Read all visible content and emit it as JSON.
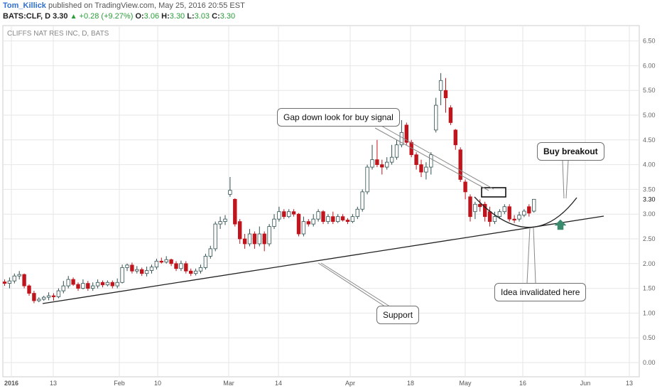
{
  "header": {
    "author": "Tom_Killick",
    "published": "published on TradingView.com, May 25, 2016 20:55 EST",
    "symbol": "BATS:CLF, D",
    "last": "3.30",
    "change": "+0.28 (+9.27%)",
    "o_label": "O:",
    "o": "3.06",
    "h_label": "H:",
    "h": "3.30",
    "l_label": "L:",
    "l": "3.03",
    "c_label": "C:",
    "c": "3.30"
  },
  "chart_data": {
    "type": "candlestick",
    "title": "CLIFFS NAT RES INC, D, BATS",
    "ylim": [
      -0.2,
      6.75
    ],
    "y_ticks": [
      "0.00",
      "0.50",
      "1.00",
      "1.50",
      "2.00",
      "2.50",
      "3.00",
      "3.50",
      "4.00",
      "4.50",
      "5.00",
      "5.50",
      "6.00",
      "6.50"
    ],
    "current_price_label": "3.30",
    "x_tick_labels": [
      "2016",
      "13",
      "Feb",
      "10",
      "Mar",
      "14",
      "Apr",
      "18",
      "May",
      "16",
      "Jun",
      "13"
    ],
    "candles": [
      {
        "o": 1.63,
        "c": 1.6,
        "h": 1.68,
        "l": 1.55
      },
      {
        "o": 1.6,
        "c": 1.65,
        "h": 1.72,
        "l": 1.5
      },
      {
        "o": 1.65,
        "c": 1.75,
        "h": 1.8,
        "l": 1.6
      },
      {
        "o": 1.75,
        "c": 1.78,
        "h": 1.85,
        "l": 1.68
      },
      {
        "o": 1.78,
        "c": 1.55,
        "h": 1.8,
        "l": 1.5
      },
      {
        "o": 1.55,
        "c": 1.4,
        "h": 1.58,
        "l": 1.35
      },
      {
        "o": 1.4,
        "c": 1.25,
        "h": 1.45,
        "l": 1.2
      },
      {
        "o": 1.25,
        "c": 1.28,
        "h": 1.32,
        "l": 1.22
      },
      {
        "o": 1.28,
        "c": 1.32,
        "h": 1.35,
        "l": 1.25
      },
      {
        "o": 1.32,
        "c": 1.35,
        "h": 1.42,
        "l": 1.26
      },
      {
        "o": 1.35,
        "c": 1.33,
        "h": 1.4,
        "l": 1.25
      },
      {
        "o": 1.33,
        "c": 1.45,
        "h": 1.5,
        "l": 1.3
      },
      {
        "o": 1.45,
        "c": 1.55,
        "h": 1.65,
        "l": 1.4
      },
      {
        "o": 1.55,
        "c": 1.68,
        "h": 1.75,
        "l": 1.5
      },
      {
        "o": 1.68,
        "c": 1.58,
        "h": 1.72,
        "l": 1.55
      },
      {
        "o": 1.58,
        "c": 1.5,
        "h": 1.62,
        "l": 1.45
      },
      {
        "o": 1.5,
        "c": 1.6,
        "h": 1.68,
        "l": 1.48
      },
      {
        "o": 1.6,
        "c": 1.5,
        "h": 1.65,
        "l": 1.45
      },
      {
        "o": 1.5,
        "c": 1.55,
        "h": 1.62,
        "l": 1.45
      },
      {
        "o": 1.55,
        "c": 1.62,
        "h": 1.68,
        "l": 1.5
      },
      {
        "o": 1.62,
        "c": 1.57,
        "h": 1.66,
        "l": 1.52
      },
      {
        "o": 1.57,
        "c": 1.62,
        "h": 1.66,
        "l": 1.54
      },
      {
        "o": 1.62,
        "c": 1.55,
        "h": 1.66,
        "l": 1.5
      },
      {
        "o": 1.55,
        "c": 1.62,
        "h": 1.7,
        "l": 1.5
      },
      {
        "o": 1.62,
        "c": 1.92,
        "h": 1.98,
        "l": 1.6
      },
      {
        "o": 1.92,
        "c": 1.97,
        "h": 2.0,
        "l": 1.85
      },
      {
        "o": 1.97,
        "c": 1.85,
        "h": 2.02,
        "l": 1.8
      },
      {
        "o": 1.85,
        "c": 1.88,
        "h": 1.95,
        "l": 1.8
      },
      {
        "o": 1.88,
        "c": 1.8,
        "h": 1.92,
        "l": 1.75
      },
      {
        "o": 1.8,
        "c": 1.86,
        "h": 1.94,
        "l": 1.74
      },
      {
        "o": 1.86,
        "c": 1.93,
        "h": 1.98,
        "l": 1.8
      },
      {
        "o": 1.93,
        "c": 2.05,
        "h": 2.1,
        "l": 1.88
      },
      {
        "o": 2.05,
        "c": 2.03,
        "h": 2.12,
        "l": 2.0
      },
      {
        "o": 2.03,
        "c": 2.08,
        "h": 2.15,
        "l": 2.0
      },
      {
        "o": 2.08,
        "c": 2.0,
        "h": 2.1,
        "l": 1.95
      },
      {
        "o": 2.0,
        "c": 1.9,
        "h": 2.05,
        "l": 1.85
      },
      {
        "o": 1.9,
        "c": 2.0,
        "h": 2.06,
        "l": 1.85
      },
      {
        "o": 2.0,
        "c": 1.85,
        "h": 2.05,
        "l": 1.8
      },
      {
        "o": 1.85,
        "c": 1.8,
        "h": 1.9,
        "l": 1.75
      },
      {
        "o": 1.8,
        "c": 1.85,
        "h": 1.9,
        "l": 1.76
      },
      {
        "o": 1.85,
        "c": 1.92,
        "h": 1.98,
        "l": 1.8
      },
      {
        "o": 1.92,
        "c": 2.15,
        "h": 2.2,
        "l": 1.88
      },
      {
        "o": 2.15,
        "c": 2.3,
        "h": 2.36,
        "l": 2.1
      },
      {
        "o": 2.3,
        "c": 2.8,
        "h": 2.85,
        "l": 2.25
      },
      {
        "o": 2.8,
        "c": 2.85,
        "h": 2.95,
        "l": 2.7
      },
      {
        "o": 2.85,
        "c": 2.9,
        "h": 2.98,
        "l": 2.78
      },
      {
        "o": 3.4,
        "c": 3.48,
        "h": 3.75,
        "l": 3.35
      },
      {
        "o": 3.3,
        "c": 2.8,
        "h": 3.32,
        "l": 2.75
      },
      {
        "o": 2.85,
        "c": 2.5,
        "h": 2.9,
        "l": 2.4
      },
      {
        "o": 2.5,
        "c": 2.4,
        "h": 2.6,
        "l": 2.3
      },
      {
        "o": 2.4,
        "c": 2.6,
        "h": 2.7,
        "l": 2.35
      },
      {
        "o": 2.6,
        "c": 2.4,
        "h": 2.65,
        "l": 2.3
      },
      {
        "o": 2.4,
        "c": 2.6,
        "h": 2.75,
        "l": 2.35
      },
      {
        "o": 2.6,
        "c": 2.4,
        "h": 2.65,
        "l": 2.25
      },
      {
        "o": 2.4,
        "c": 2.75,
        "h": 2.8,
        "l": 2.35
      },
      {
        "o": 2.75,
        "c": 2.9,
        "h": 3.0,
        "l": 2.7
      },
      {
        "o": 2.9,
        "c": 3.05,
        "h": 3.15,
        "l": 2.85
      },
      {
        "o": 3.05,
        "c": 2.95,
        "h": 3.1,
        "l": 2.9
      },
      {
        "o": 2.95,
        "c": 3.05,
        "h": 3.1,
        "l": 2.92
      },
      {
        "o": 3.05,
        "c": 3.0,
        "h": 3.1,
        "l": 2.95
      },
      {
        "o": 3.0,
        "c": 2.6,
        "h": 3.02,
        "l": 2.55
      },
      {
        "o": 2.6,
        "c": 2.85,
        "h": 2.95,
        "l": 2.55
      },
      {
        "o": 2.85,
        "c": 2.8,
        "h": 2.9,
        "l": 2.75
      },
      {
        "o": 2.8,
        "c": 2.9,
        "h": 3.0,
        "l": 2.75
      },
      {
        "o": 2.9,
        "c": 3.05,
        "h": 3.1,
        "l": 2.85
      },
      {
        "o": 3.05,
        "c": 2.85,
        "h": 3.08,
        "l": 2.8
      },
      {
        "o": 2.85,
        "c": 2.95,
        "h": 3.0,
        "l": 2.8
      },
      {
        "o": 2.95,
        "c": 2.85,
        "h": 3.05,
        "l": 2.8
      },
      {
        "o": 2.85,
        "c": 2.95,
        "h": 3.0,
        "l": 2.82
      },
      {
        "o": 2.95,
        "c": 2.88,
        "h": 3.0,
        "l": 2.85
      },
      {
        "o": 2.88,
        "c": 2.85,
        "h": 2.92,
        "l": 2.8
      },
      {
        "o": 2.85,
        "c": 2.95,
        "h": 3.0,
        "l": 2.82
      },
      {
        "o": 2.95,
        "c": 3.1,
        "h": 3.15,
        "l": 2.9
      },
      {
        "o": 3.1,
        "c": 3.45,
        "h": 3.5,
        "l": 3.05
      },
      {
        "o": 3.45,
        "c": 3.95,
        "h": 4.0,
        "l": 3.4
      },
      {
        "o": 3.95,
        "c": 4.1,
        "h": 4.4,
        "l": 3.9
      },
      {
        "o": 4.1,
        "c": 4.0,
        "h": 4.5,
        "l": 3.95
      },
      {
        "o": 4.0,
        "c": 3.95,
        "h": 4.1,
        "l": 3.8
      },
      {
        "o": 3.95,
        "c": 4.05,
        "h": 4.15,
        "l": 3.9
      },
      {
        "o": 4.05,
        "c": 4.15,
        "h": 4.4,
        "l": 4.0
      },
      {
        "o": 4.15,
        "c": 4.4,
        "h": 4.5,
        "l": 4.1
      },
      {
        "o": 4.4,
        "c": 4.65,
        "h": 4.9,
        "l": 4.35
      },
      {
        "o": 4.8,
        "c": 4.45,
        "h": 4.85,
        "l": 4.4
      },
      {
        "o": 4.45,
        "c": 4.2,
        "h": 4.5,
        "l": 4.15
      },
      {
        "o": 4.2,
        "c": 4.0,
        "h": 4.25,
        "l": 3.9
      },
      {
        "o": 4.0,
        "c": 3.85,
        "h": 4.1,
        "l": 3.75
      },
      {
        "o": 3.85,
        "c": 3.95,
        "h": 4.05,
        "l": 3.7
      },
      {
        "o": 3.95,
        "c": 4.2,
        "h": 4.25,
        "l": 3.8
      },
      {
        "o": 4.7,
        "c": 5.2,
        "h": 5.35,
        "l": 4.65
      },
      {
        "o": 5.5,
        "c": 5.7,
        "h": 5.85,
        "l": 5.2
      },
      {
        "o": 5.5,
        "c": 5.35,
        "h": 5.75,
        "l": 5.05
      },
      {
        "o": 5.15,
        "c": 4.85,
        "h": 5.2,
        "l": 4.8
      },
      {
        "o": 4.7,
        "c": 4.4,
        "h": 4.72,
        "l": 4.3
      },
      {
        "o": 4.3,
        "c": 3.7,
        "h": 4.35,
        "l": 3.65
      },
      {
        "o": 3.65,
        "c": 3.45,
        "h": 3.7,
        "l": 3.3
      },
      {
        "o": 3.35,
        "c": 2.95,
        "h": 3.4,
        "l": 2.85
      },
      {
        "o": 3.05,
        "c": 3.2,
        "h": 3.25,
        "l": 2.9
      },
      {
        "o": 3.2,
        "c": 3.15,
        "h": 3.3,
        "l": 3.05
      },
      {
        "o": 3.2,
        "c": 2.95,
        "h": 3.25,
        "l": 2.85
      },
      {
        "o": 3.05,
        "c": 2.85,
        "h": 3.15,
        "l": 2.75
      },
      {
        "o": 2.85,
        "c": 2.95,
        "h": 3.05,
        "l": 2.8
      },
      {
        "o": 2.95,
        "c": 3.05,
        "h": 3.1,
        "l": 2.9
      },
      {
        "o": 3.05,
        "c": 3.15,
        "h": 3.2,
        "l": 3.0
      },
      {
        "o": 3.15,
        "c": 2.9,
        "h": 3.2,
        "l": 2.85
      },
      {
        "o": 2.9,
        "c": 2.88,
        "h": 2.98,
        "l": 2.82
      },
      {
        "o": 2.9,
        "c": 2.98,
        "h": 3.05,
        "l": 2.85
      },
      {
        "o": 2.98,
        "c": 3.06,
        "h": 3.1,
        "l": 2.94
      },
      {
        "o": 3.15,
        "c": 3.02,
        "h": 3.2,
        "l": 2.95
      },
      {
        "o": 3.06,
        "c": 3.3,
        "h": 3.3,
        "l": 3.03
      }
    ]
  },
  "annotations": {
    "gap_note": "Gap down look for buy signal",
    "buy_note": "Buy breakout",
    "support_note": "Support",
    "invalid_note": "Idea invalidated here"
  },
  "colors": {
    "bear": "#c0151c",
    "bull_fill": "#ffffff",
    "bull_border": "#2f4f4f",
    "arrow": "#3a8a6e",
    "line": "#222222",
    "grid": "#e6e6e6"
  }
}
